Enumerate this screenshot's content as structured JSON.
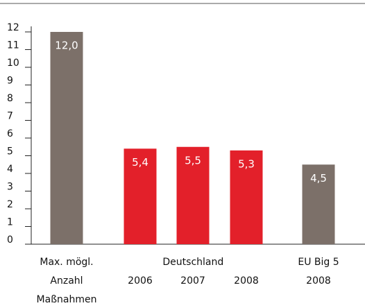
{
  "chart_data": {
    "type": "bar",
    "categories": [
      [
        "Max. mögl.",
        "Anzahl",
        "Maßnahmen"
      ],
      [
        "2006"
      ],
      [
        "2007"
      ],
      [
        "2008"
      ],
      [
        "EU Big 5",
        "2008"
      ]
    ],
    "groups": [
      {
        "label": "Deutschland",
        "members": [
          1,
          2,
          3
        ]
      }
    ],
    "values": [
      12.0,
      5.4,
      5.5,
      5.3,
      4.5
    ],
    "value_labels": [
      "12,0",
      "5,4",
      "5,5",
      "5,3",
      "4,5"
    ],
    "colors": [
      "#7c7069",
      "#e3202a",
      "#e3202a",
      "#e3202a",
      "#7c7069"
    ],
    "ylim": [
      0,
      12
    ],
    "yticks": [
      0,
      1,
      2,
      3,
      4,
      5,
      6,
      7,
      8,
      9,
      10,
      11,
      12
    ]
  }
}
